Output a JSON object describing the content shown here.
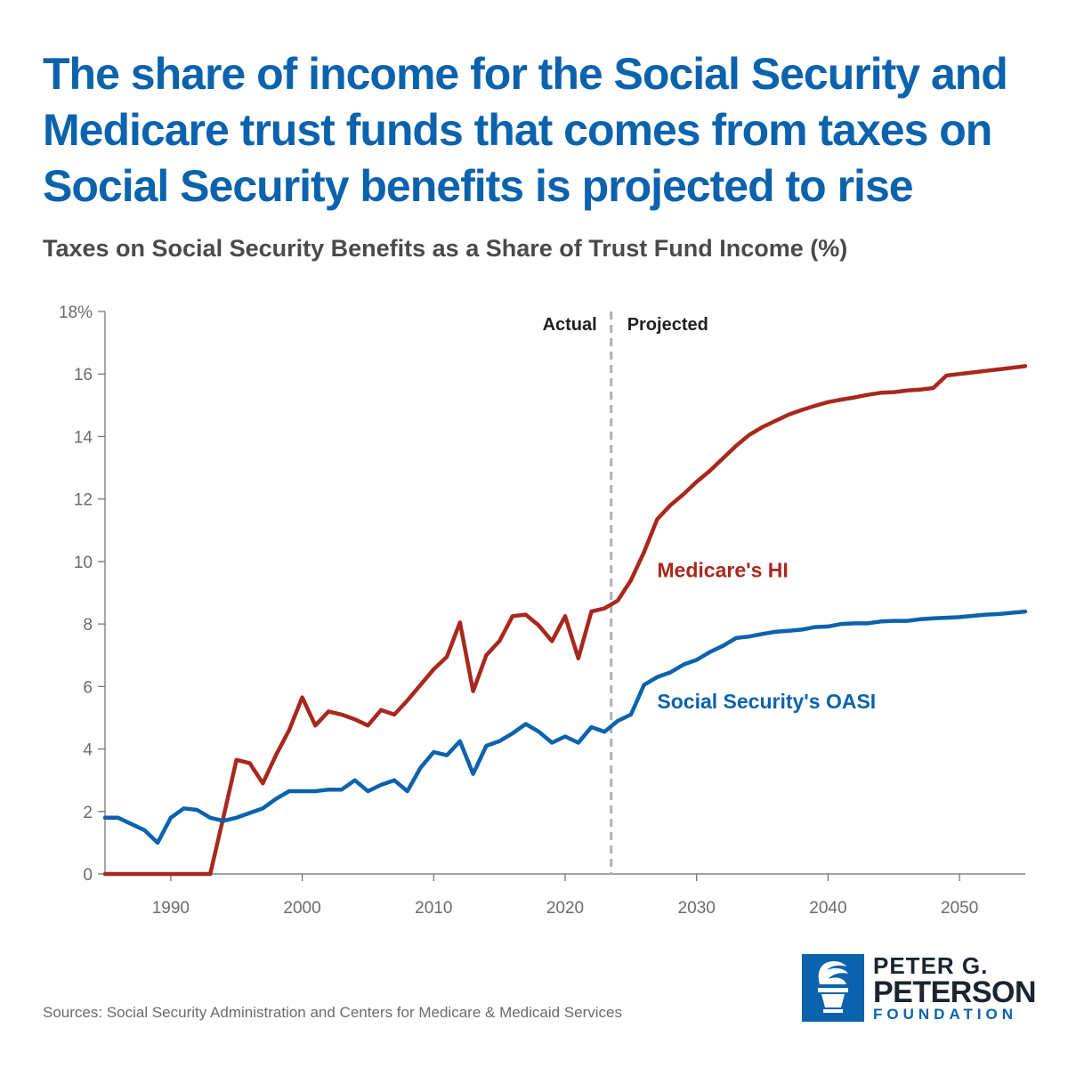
{
  "title": "The share of income for the Social Security and Medicare trust funds that comes from taxes on Social Security benefits is projected to rise",
  "subtitle": "Taxes on Social Security Benefits as a Share of Trust Fund Income (%)",
  "source": "Sources: Social Security Administration and Centers for Medicare & Medicaid Services",
  "logo": {
    "line1": "PETER G.",
    "line2": "PETERSON",
    "line3": "FOUNDATION",
    "icon": "torch-icon",
    "color": "#0b62ad"
  },
  "colors": {
    "oasi": "#0b62ad",
    "hi": "#a8281e",
    "divider": "#b0b0b0",
    "axis": "#6b6b6b"
  },
  "chart_data": {
    "type": "line",
    "title": "Taxes on Social Security Benefits as a Share of Trust Fund Income (%)",
    "ylim": [
      0,
      18
    ],
    "xlim": [
      1985,
      2055
    ],
    "y_ticks": [
      0,
      2,
      4,
      6,
      8,
      10,
      12,
      14,
      16,
      18
    ],
    "y_tick_labels": [
      "0",
      "2",
      "4",
      "6",
      "8",
      "10",
      "12",
      "14",
      "16",
      "18%"
    ],
    "x_ticks": [
      1990,
      2000,
      2010,
      2020,
      2030,
      2040,
      2050
    ],
    "x_tick_labels": [
      "1990",
      "2000",
      "2010",
      "2020",
      "2030",
      "2040",
      "2050"
    ],
    "grid": false,
    "divider": {
      "x": 2023.5,
      "left_label": "Actual",
      "right_label": "Projected"
    },
    "x": [
      1985,
      1986,
      1987,
      1988,
      1989,
      1990,
      1991,
      1992,
      1993,
      1994,
      1995,
      1996,
      1997,
      1998,
      1999,
      2000,
      2001,
      2002,
      2003,
      2004,
      2005,
      2006,
      2007,
      2008,
      2009,
      2010,
      2011,
      2012,
      2013,
      2014,
      2015,
      2016,
      2017,
      2018,
      2019,
      2020,
      2021,
      2022,
      2023,
      2024,
      2025,
      2026,
      2027,
      2028,
      2029,
      2030,
      2031,
      2032,
      2033,
      2034,
      2035,
      2036,
      2037,
      2038,
      2039,
      2040,
      2041,
      2042,
      2043,
      2044,
      2045,
      2046,
      2047,
      2048,
      2049,
      2050,
      2051,
      2052,
      2053,
      2054,
      2055
    ],
    "series": [
      {
        "name": "Medicare's HI",
        "label_year": 2027,
        "label_value": 9.5,
        "values": [
          0,
          0,
          0,
          0,
          0,
          0,
          0,
          0,
          0,
          1.8,
          3.65,
          3.55,
          2.9,
          3.8,
          4.6,
          5.65,
          4.75,
          5.2,
          5.1,
          4.95,
          4.75,
          5.25,
          5.1,
          5.55,
          6.05,
          6.55,
          6.95,
          8.05,
          5.85,
          7.0,
          7.45,
          8.25,
          8.3,
          7.95,
          7.45,
          8.25,
          6.9,
          8.4,
          8.5,
          8.75,
          9.4,
          10.3,
          11.35,
          11.8,
          12.15,
          12.55,
          12.9,
          13.3,
          13.7,
          14.05,
          14.3,
          14.5,
          14.7,
          14.85,
          14.98,
          15.1,
          15.18,
          15.25,
          15.33,
          15.4,
          15.42,
          15.47,
          15.5,
          15.55,
          15.95,
          16.0,
          16.05,
          16.1,
          16.15,
          16.2,
          16.25
        ]
      },
      {
        "name": "Social Security's OASI",
        "label_year": 2027,
        "label_value": 5.3,
        "values": [
          1.8,
          1.8,
          1.6,
          1.4,
          1.0,
          1.8,
          2.1,
          2.05,
          1.8,
          1.7,
          1.8,
          1.95,
          2.1,
          2.4,
          2.65,
          2.65,
          2.65,
          2.7,
          2.7,
          3.0,
          2.65,
          2.85,
          3.0,
          2.65,
          3.4,
          3.9,
          3.8,
          4.25,
          3.2,
          4.1,
          4.25,
          4.5,
          4.8,
          4.55,
          4.2,
          4.4,
          4.2,
          4.7,
          4.55,
          4.9,
          5.1,
          6.05,
          6.3,
          6.45,
          6.7,
          6.85,
          7.1,
          7.3,
          7.55,
          7.6,
          7.68,
          7.75,
          7.78,
          7.82,
          7.9,
          7.92,
          8.0,
          8.02,
          8.02,
          8.08,
          8.1,
          8.1,
          8.15,
          8.18,
          8.2,
          8.22,
          8.26,
          8.3,
          8.32,
          8.36,
          8.4
        ]
      }
    ]
  }
}
